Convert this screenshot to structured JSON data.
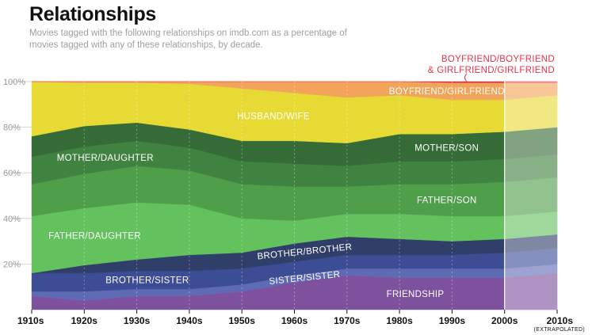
{
  "title": "Relationships",
  "subtitle": "Movies tagged with the following relationships on imdb.com as a percentage of movies tagged with any of these relationships, by decade.",
  "chart_data": {
    "type": "area",
    "stacked": true,
    "x": [
      "1910s",
      "1920s",
      "1930s",
      "1940s",
      "1950s",
      "1960s",
      "1970s",
      "1980s",
      "1990s",
      "2000s",
      "2010s"
    ],
    "x_note": "(EXTRAPOLATED)",
    "ylim": [
      0,
      100
    ],
    "yticks": [
      "100%",
      "80%",
      "60%",
      "40%",
      "20%"
    ],
    "callout": [
      "BOYFRIEND/BOYFRIEND",
      "& GIRLFRIEND/GIRLFRIEND"
    ],
    "series": [
      {
        "name": "FRIENDSHIP",
        "color": "#7d519e",
        "values": [
          6,
          4,
          6,
          6,
          8,
          12,
          15,
          14,
          14,
          14,
          16
        ]
      },
      {
        "name": "SISTER/SISTER",
        "color": "#5f6ab5",
        "values": [
          2,
          4,
          3,
          3,
          3,
          3,
          3,
          4,
          4,
          4,
          4
        ]
      },
      {
        "name": "BROTHER/SISTER",
        "color": "#3c4d96",
        "values": [
          8,
          8,
          8,
          8,
          7,
          6,
          6,
          6,
          6,
          7,
          7
        ]
      },
      {
        "name": "BROTHER/BROTHER",
        "color": "#2f3f6a",
        "values": [
          0,
          3.5,
          5,
          7,
          7,
          8,
          8,
          7,
          6,
          6,
          6
        ]
      },
      {
        "name": "FATHER/DAUGHTER",
        "color": "#63c25e",
        "values": [
          25,
          25,
          25,
          22,
          15,
          10,
          10,
          11,
          11,
          10,
          10
        ]
      },
      {
        "name": "FATHER/SON",
        "color": "#4f9e4a",
        "values": [
          14,
          15,
          16,
          15,
          15,
          15,
          12,
          13,
          14,
          15,
          15
        ]
      },
      {
        "name": "MOTHER/DAUGHTER",
        "color": "#40823f",
        "values": [
          12,
          12,
          11,
          10,
          10,
          10,
          9,
          10,
          10,
          10,
          10
        ]
      },
      {
        "name": "MOTHER/SON",
        "color": "#356b36",
        "values": [
          9,
          9,
          8,
          8,
          9,
          10,
          10,
          12,
          12,
          12,
          12
        ]
      },
      {
        "name": "HUSBAND/WIFE",
        "color": "#e8da35",
        "values": [
          24,
          19,
          17.5,
          20,
          23,
          21,
          20,
          17,
          15,
          14,
          14
        ]
      },
      {
        "name": "BOYFRIEND/GIRLFRIEND",
        "color": "#f2a55a",
        "values": [
          0,
          0.5,
          0.5,
          1,
          3,
          5,
          7,
          6,
          7.5,
          7.5,
          5.5
        ]
      },
      {
        "name": "BOYFRIEND/BOYFRIEND & GIRLFRIEND/GIRLFRIEND",
        "color": "#e8344a",
        "values": [
          0,
          0,
          0,
          0,
          0,
          0,
          0,
          0,
          0.5,
          0.5,
          0.5
        ]
      }
    ]
  }
}
